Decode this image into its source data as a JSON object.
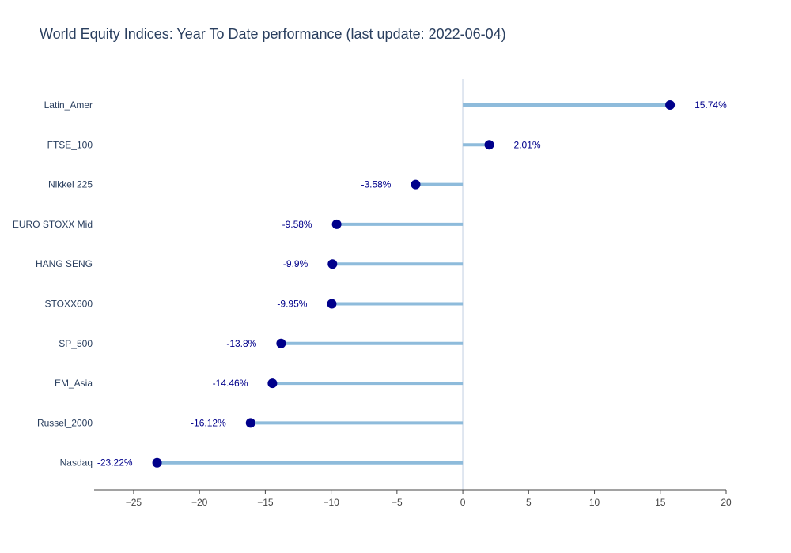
{
  "chart_data": {
    "type": "lollipop",
    "title": "World Equity Indices: Year To Date performance (last update: 2022-06-04)",
    "xlabel": "",
    "ylabel": "",
    "xlim": [
      -28,
      20
    ],
    "xticks": [
      -25,
      -20,
      -15,
      -10,
      -5,
      0,
      5,
      10,
      15,
      20
    ],
    "xtick_labels": [
      "−25",
      "−20",
      "−15",
      "−10",
      "−5",
      "0",
      "5",
      "10",
      "15",
      "20"
    ],
    "grid": false,
    "categories": [
      "Latin_Amer",
      "FTSE_100",
      "Nikkei 225",
      "EURO STOXX Mid",
      "HANG SENG",
      "STOXX600",
      "SP_500",
      "EM_Asia",
      "Russel_2000",
      "Nasdaq"
    ],
    "values": [
      15.74,
      2.01,
      -3.58,
      -9.58,
      -9.9,
      -9.95,
      -13.8,
      -14.46,
      -16.12,
      -23.22
    ],
    "data_labels": [
      "15.74%",
      "2.01%",
      "-3.58%",
      "-9.58%",
      "-9.9%",
      "-9.95%",
      "-13.8%",
      "-14.46%",
      "-16.12%",
      "-23.22%"
    ],
    "colors": {
      "stem": "#8ebbdb",
      "marker": "#00008b",
      "label": "#00008b",
      "zero_line": "#dfe6f0",
      "axis_line": "#444444",
      "title": "#2a3f5f"
    }
  }
}
